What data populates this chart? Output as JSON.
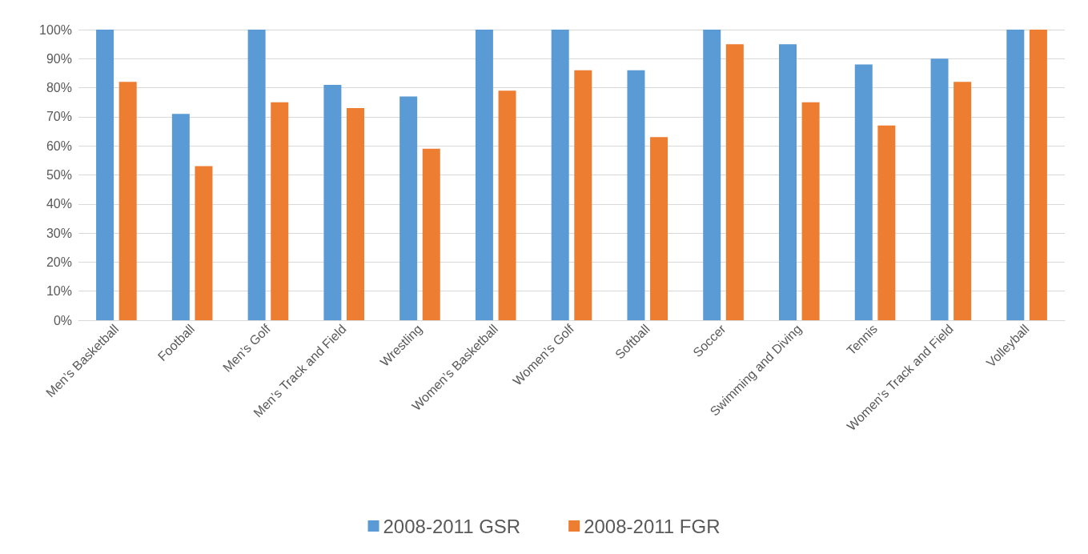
{
  "chart_data": {
    "type": "bar",
    "categories": [
      "Men’s Basketball",
      "Football",
      "Men’s Golf",
      "Men’s Track and Field",
      "Wrestling",
      "Women’s Basketball",
      "Women’s Golf",
      "Softball",
      "Soccer",
      "Swimming and Diving",
      "Tennis",
      "Women’s Track and Field",
      "Volleyball"
    ],
    "series": [
      {
        "name": "2008-2011 GSR",
        "color": "#5b9bd5",
        "values": [
          100,
          71,
          100,
          81,
          77,
          100,
          100,
          86,
          100,
          95,
          88,
          90,
          100
        ]
      },
      {
        "name": "2008-2011 FGR",
        "color": "#ed7d31",
        "values": [
          82,
          53,
          75,
          73,
          59,
          79,
          86,
          63,
          95,
          75,
          67,
          82,
          100
        ]
      }
    ],
    "ylim": [
      0,
      100
    ],
    "yticks": [
      {
        "value": 0,
        "label": "0%"
      },
      {
        "value": 10,
        "label": "10%"
      },
      {
        "value": 20,
        "label": "20%"
      },
      {
        "value": 30,
        "label": "30%"
      },
      {
        "value": 40,
        "label": "40%"
      },
      {
        "value": 50,
        "label": "50%"
      },
      {
        "value": 60,
        "label": "60%"
      },
      {
        "value": 70,
        "label": "70%"
      },
      {
        "value": 80,
        "label": "80%"
      },
      {
        "value": 90,
        "label": "90%"
      },
      {
        "value": 100,
        "label": "100%"
      }
    ],
    "grid": true,
    "legend": "bottom"
  }
}
